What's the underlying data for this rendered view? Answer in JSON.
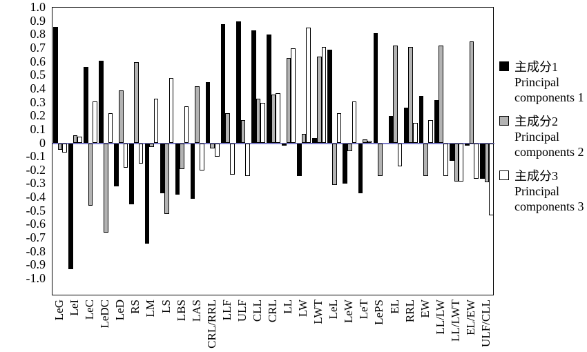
{
  "chart_data": {
    "type": "bar",
    "title": "",
    "xlabel": "",
    "ylabel": "",
    "ylim": [
      -1.0,
      1.0
    ],
    "ytick_step": 0.1,
    "grid": false,
    "legend_position": "right",
    "zero_line_color": "#7a7ac8",
    "plot_border_color": "#000000",
    "categories": [
      "LeG",
      "LeI",
      "LeC",
      "LeDC",
      "LeD",
      "RS",
      "LM",
      "LS",
      "LBS",
      "LAS",
      "CRL/RRL",
      "LLF",
      "ULF",
      "CLL",
      "CRL",
      "LL",
      "LW",
      "LWT",
      "LeL",
      "LeW",
      "LeT",
      "LePS",
      "EL",
      "RRL",
      "EW",
      "LL/LW",
      "LL/LWT",
      "EL/EW",
      "ULF/CLL"
    ],
    "yticks": [
      "1.0",
      "0.9",
      "0.8",
      "0.7",
      "0.6",
      "0.5",
      "0.4",
      "0.3",
      "0.2",
      "0.1",
      "0",
      "-0.1",
      "-0.2",
      "-0.3",
      "-0.4",
      "-0.5",
      "-0.6",
      "-0.7",
      "-0.8",
      "-0.9",
      "-1.0"
    ],
    "series": [
      {
        "name_zh": "主成分1",
        "name_en": "Principal components 1",
        "color": "#000000",
        "values": [
          0.86,
          -0.93,
          0.56,
          0.61,
          -0.32,
          -0.45,
          -0.74,
          -0.37,
          -0.38,
          -0.41,
          0.45,
          0.88,
          0.9,
          0.83,
          0.8,
          -0.02,
          -0.24,
          0.04,
          0.69,
          -0.3,
          -0.37,
          0.81,
          0.2,
          0.26,
          0.35,
          0.32,
          -0.13,
          -0.02,
          -0.26
        ]
      },
      {
        "name_zh": "主成分2",
        "name_en": "Principal components 2",
        "color": "#b3b3b3",
        "values": [
          -0.05,
          0.06,
          -0.46,
          -0.66,
          0.39,
          0.6,
          -0.03,
          -0.52,
          -0.19,
          0.42,
          -0.04,
          0.22,
          0.17,
          0.33,
          0.36,
          0.63,
          0.07,
          0.64,
          -0.31,
          -0.06,
          0.03,
          -0.24,
          0.72,
          0.71,
          -0.24,
          0.72,
          -0.28,
          0.75,
          -0.29
        ]
      },
      {
        "name_zh": "主成分3",
        "name_en": "Principal components 3",
        "color": "#ffffff",
        "values": [
          -0.07,
          0.05,
          0.31,
          0.22,
          -0.18,
          -0.15,
          0.33,
          0.48,
          0.27,
          -0.2,
          -0.1,
          -0.23,
          -0.24,
          0.3,
          0.37,
          0.7,
          0.85,
          0.71,
          0.22,
          0.31,
          0.02,
          0.0,
          -0.17,
          0.15,
          0.17,
          -0.24,
          -0.28,
          -0.26,
          -0.53
        ]
      }
    ]
  },
  "legend": {
    "items": [
      {
        "zh": "主成分1",
        "en_line1": "Principal",
        "en_line2": "components 1",
        "swatch": "#000000"
      },
      {
        "zh": "主成分2",
        "en_line1": "Principal",
        "en_line2": "components 2",
        "swatch": "#b3b3b3"
      },
      {
        "zh": "主成分3",
        "en_line1": "Principal",
        "en_line2": "components 3",
        "swatch": "#ffffff"
      }
    ]
  }
}
